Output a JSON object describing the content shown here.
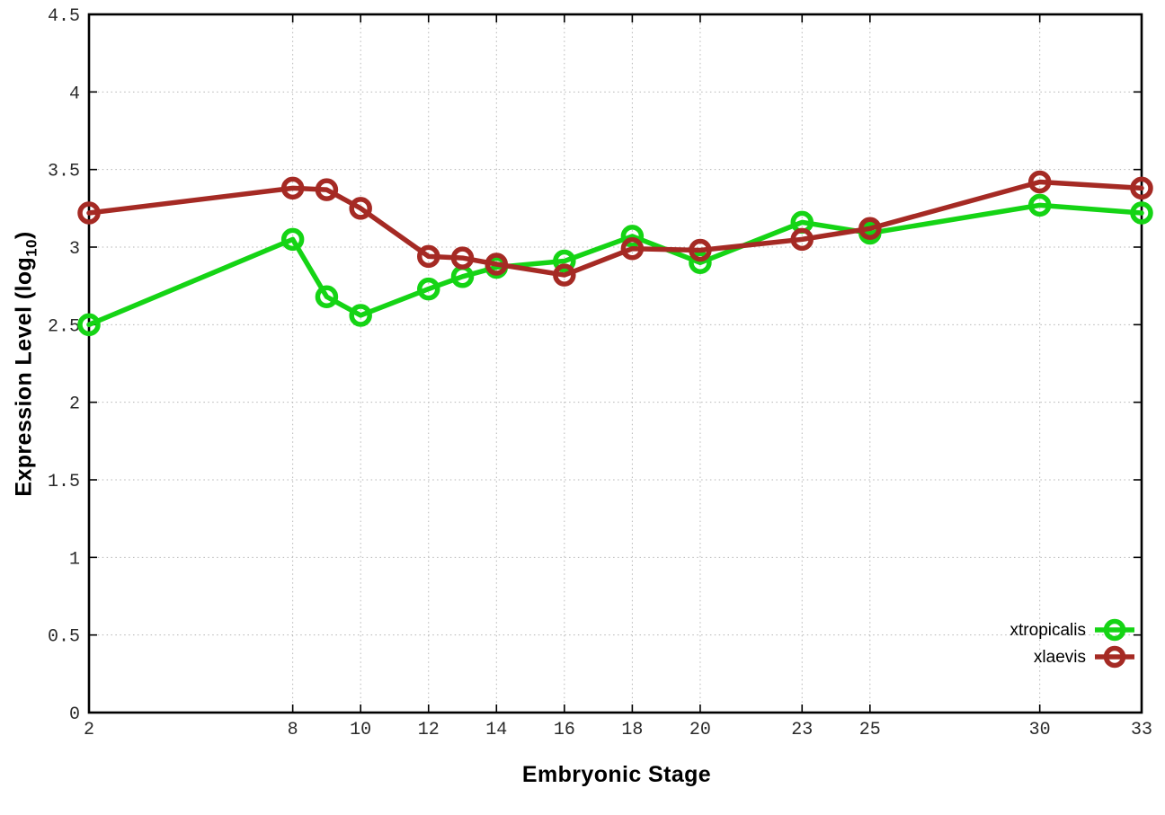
{
  "chart_data": {
    "type": "line",
    "title": "",
    "xlabel": "Embryonic Stage",
    "ylabel": {
      "prefix": "Expression Level (log",
      "sub": "10",
      "suffix": ")"
    },
    "xlim": [
      2,
      33
    ],
    "ylim": [
      0,
      4.5
    ],
    "grid": true,
    "grid_color": "#b5b5b5",
    "axis_color": "#000000",
    "background_color": "#ffffff",
    "legend_position": "inside-bottom-right",
    "x_ticks": [
      2,
      8,
      10,
      12,
      14,
      16,
      18,
      20,
      23,
      25,
      30,
      33
    ],
    "x_tick_labels": [
      "2",
      "8",
      "10",
      "12",
      "14",
      "16",
      "18",
      "20",
      "23",
      "25",
      "30",
      "33"
    ],
    "y_ticks": [
      0,
      0.5,
      1,
      1.5,
      2,
      2.5,
      3,
      3.5,
      4,
      4.5
    ],
    "y_tick_labels": [
      "0",
      "0.5",
      "1",
      "1.5",
      "2",
      "2.5",
      "3",
      "3.5",
      "4",
      "4.5"
    ],
    "x": [
      2,
      8,
      9,
      10,
      12,
      13,
      14,
      16,
      18,
      20,
      23,
      25,
      30,
      33
    ],
    "series": [
      {
        "name": "xtropicalis",
        "color": "#15d415",
        "marker": "open-circle",
        "values": [
          2.5,
          3.05,
          2.68,
          2.56,
          2.73,
          2.81,
          2.87,
          2.91,
          3.07,
          2.9,
          3.16,
          3.09,
          3.27,
          3.22
        ]
      },
      {
        "name": "xlaevis",
        "color": "#a52a24",
        "marker": "open-circle",
        "values": [
          3.22,
          3.38,
          3.37,
          3.25,
          2.94,
          2.93,
          2.89,
          2.82,
          2.99,
          2.98,
          3.05,
          3.12,
          3.42,
          3.38
        ]
      }
    ]
  }
}
